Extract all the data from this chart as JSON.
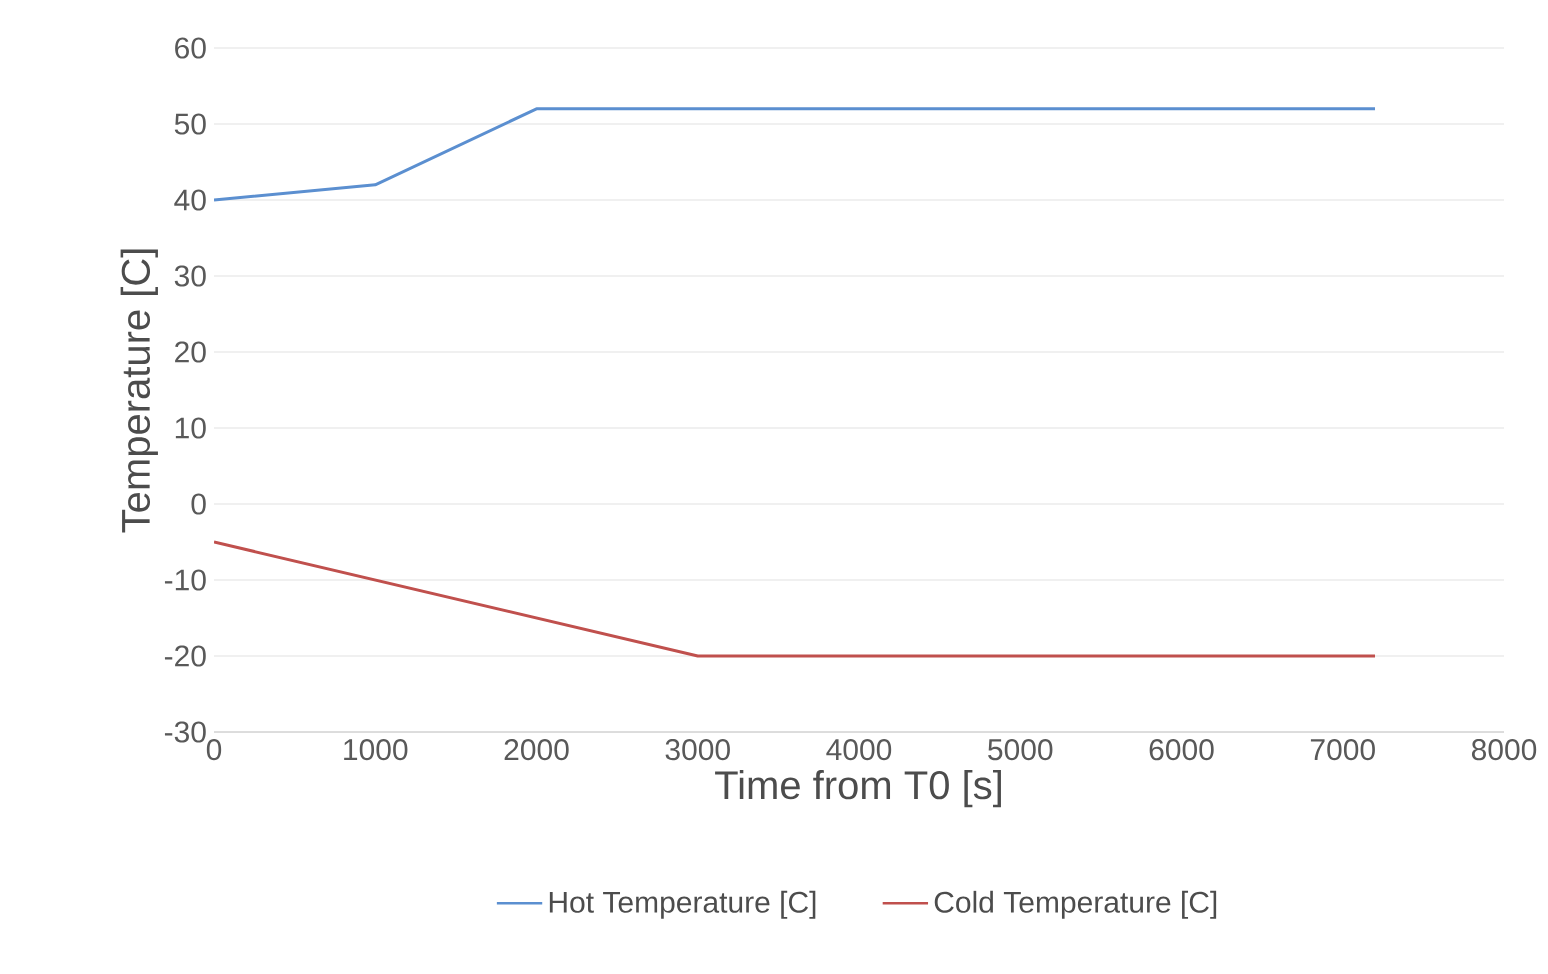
{
  "chart_data": {
    "type": "line",
    "xlabel": "Time from T0 [s]",
    "ylabel": "Temperature [C]",
    "series": [
      {
        "name": "Hot Temperature [C]",
        "color": "#5b8fd0",
        "x": [
          0,
          1000,
          2000,
          7200
        ],
        "values": [
          40,
          42,
          52,
          52
        ]
      },
      {
        "name": "Cold Temperature [C]",
        "color": "#c0504d",
        "x": [
          0,
          1000,
          2000,
          3000,
          7200
        ],
        "values": [
          -5,
          -10,
          -15,
          -20,
          -20
        ]
      }
    ],
    "xlim": [
      0,
      8000
    ],
    "xticks": [
      0,
      1000,
      2000,
      3000,
      4000,
      5000,
      6000,
      7000,
      8000
    ],
    "ylim": [
      -30,
      60
    ],
    "yticks": [
      -30,
      -20,
      -10,
      0,
      10,
      20,
      30,
      40,
      50,
      60
    ],
    "grid": "y",
    "legend": "bottom",
    "marker": "none",
    "line_style": "solid"
  }
}
